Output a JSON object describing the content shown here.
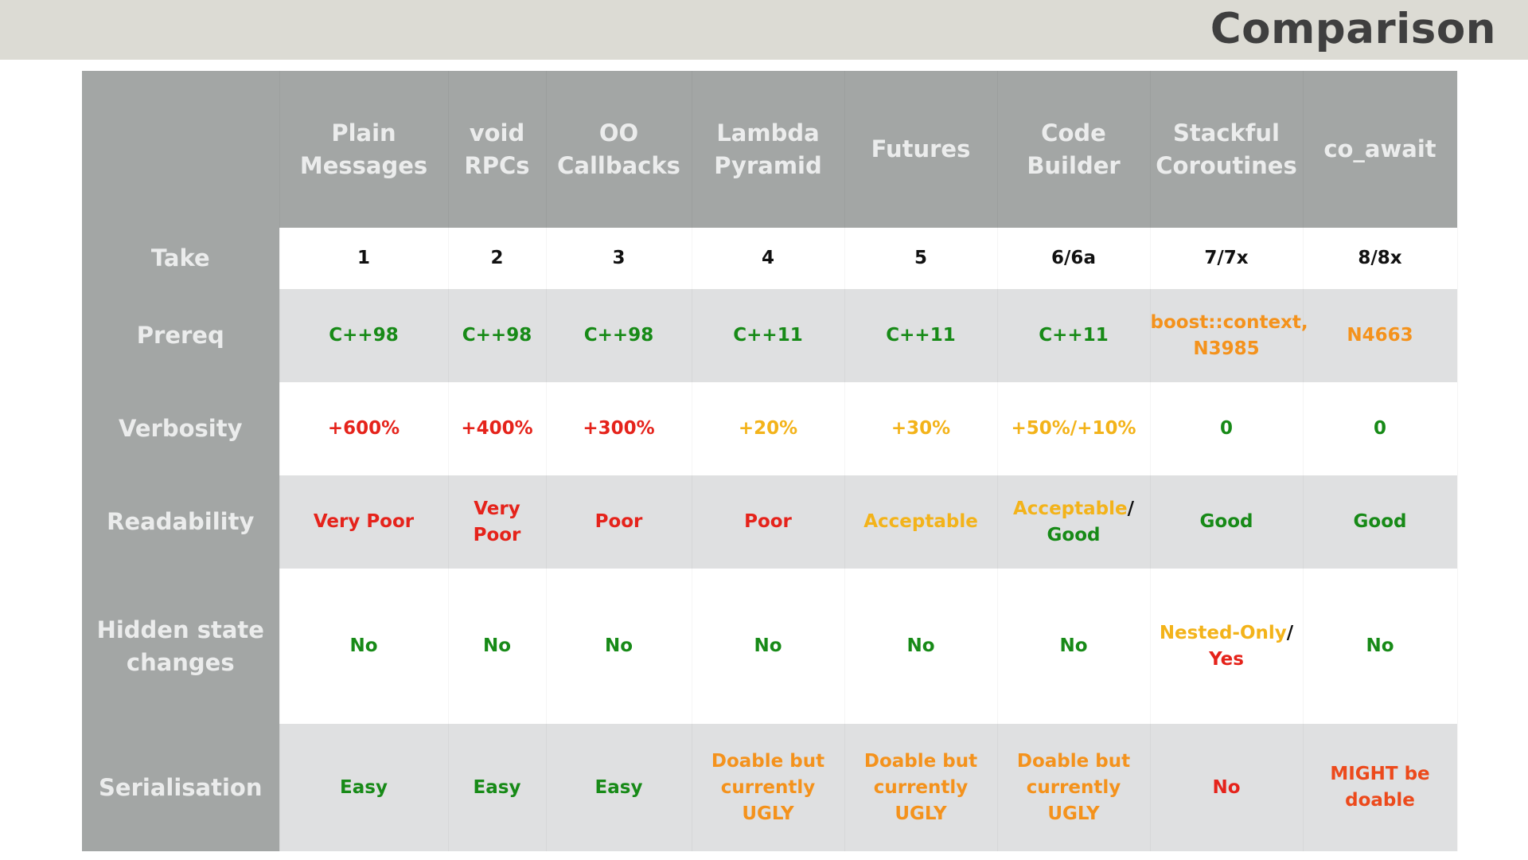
{
  "slide": {
    "title": "Comparison"
  },
  "colors": {
    "black": "#111111",
    "green": "#178a17",
    "red": "#e5231b",
    "yellow": "#f3b31a",
    "orange": "#f4921c",
    "red_orange": "#ec4a1c",
    "header_bg": "#a3a6a5",
    "header_text": "#ebecec",
    "title_bar_bg": "#dcdbd4"
  },
  "table": {
    "columns": [
      {
        "line1": "Plain",
        "line2": "Messages"
      },
      {
        "line1": "void",
        "line2": "RPCs"
      },
      {
        "line1": "OO",
        "line2": "Callbacks"
      },
      {
        "line1": "Lambda",
        "line2": "Pyramid"
      },
      {
        "line1": "Futures",
        "line2": ""
      },
      {
        "line1": "Code",
        "line2": "Builder"
      },
      {
        "line1": "Stackful",
        "line2": "Coroutines"
      },
      {
        "line1": "co_await",
        "line2": ""
      }
    ],
    "rows": [
      {
        "label": [
          "Take"
        ],
        "cells": [
          [
            {
              "text": "1",
              "color": "black"
            }
          ],
          [
            {
              "text": "2",
              "color": "black"
            }
          ],
          [
            {
              "text": "3",
              "color": "black"
            }
          ],
          [
            {
              "text": "4",
              "color": "black"
            }
          ],
          [
            {
              "text": "5",
              "color": "black"
            }
          ],
          [
            {
              "text": "6/6a",
              "color": "black"
            }
          ],
          [
            {
              "text": "7/7x",
              "color": "black"
            }
          ],
          [
            {
              "text": "8/8x",
              "color": "black"
            }
          ]
        ]
      },
      {
        "label": [
          "Prereq"
        ],
        "cells": [
          [
            {
              "text": "C++98",
              "color": "green"
            }
          ],
          [
            {
              "text": "C++98",
              "color": "green"
            }
          ],
          [
            {
              "text": "C++98",
              "color": "green"
            }
          ],
          [
            {
              "text": "C++11",
              "color": "green"
            }
          ],
          [
            {
              "text": "C++11",
              "color": "green"
            }
          ],
          [
            {
              "text": "C++11",
              "color": "green"
            }
          ],
          [
            {
              "text": "boost::context,",
              "color": "orange"
            },
            {
              "text": "N3985",
              "color": "orange",
              "newline": true
            }
          ],
          [
            {
              "text": "N4663",
              "color": "orange"
            }
          ]
        ]
      },
      {
        "label": [
          "Verbosity"
        ],
        "cells": [
          [
            {
              "text": "+600%",
              "color": "red"
            }
          ],
          [
            {
              "text": "+400%",
              "color": "red"
            }
          ],
          [
            {
              "text": "+300%",
              "color": "red"
            }
          ],
          [
            {
              "text": "+20%",
              "color": "yellow"
            }
          ],
          [
            {
              "text": "+30%",
              "color": "yellow"
            }
          ],
          [
            {
              "text": "+50%/+10%",
              "color": "yellow"
            }
          ],
          [
            {
              "text": "0",
              "color": "green"
            }
          ],
          [
            {
              "text": "0",
              "color": "green"
            }
          ]
        ]
      },
      {
        "label": [
          "Readability"
        ],
        "cells": [
          [
            {
              "text": "Very Poor",
              "color": "red"
            }
          ],
          [
            {
              "text": "Very Poor",
              "color": "red"
            }
          ],
          [
            {
              "text": "Poor",
              "color": "red"
            }
          ],
          [
            {
              "text": "Poor",
              "color": "red"
            }
          ],
          [
            {
              "text": "Acceptable",
              "color": "yellow"
            }
          ],
          [
            {
              "text": "Acceptable",
              "color": "yellow"
            },
            {
              "text": "/",
              "color": "black"
            },
            {
              "text": "Good",
              "color": "green",
              "newline": true
            }
          ],
          [
            {
              "text": "Good",
              "color": "green"
            }
          ],
          [
            {
              "text": "Good",
              "color": "green"
            }
          ]
        ]
      },
      {
        "label": [
          "Hidden state",
          "changes"
        ],
        "cells": [
          [
            {
              "text": "No",
              "color": "green"
            }
          ],
          [
            {
              "text": "No",
              "color": "green"
            }
          ],
          [
            {
              "text": "No",
              "color": "green"
            }
          ],
          [
            {
              "text": "No",
              "color": "green"
            }
          ],
          [
            {
              "text": "No",
              "color": "green"
            }
          ],
          [
            {
              "text": "No",
              "color": "green"
            }
          ],
          [
            {
              "text": "Nested-Only",
              "color": "yellow"
            },
            {
              "text": "/",
              "color": "black"
            },
            {
              "text": "Yes",
              "color": "red",
              "newline": true
            }
          ],
          [
            {
              "text": "No",
              "color": "green"
            }
          ]
        ]
      },
      {
        "label": [
          "Serialisation"
        ],
        "cells": [
          [
            {
              "text": "Easy",
              "color": "green"
            }
          ],
          [
            {
              "text": "Easy",
              "color": "green"
            }
          ],
          [
            {
              "text": "Easy",
              "color": "green"
            }
          ],
          [
            {
              "text": "Doable but",
              "color": "orange"
            },
            {
              "text": "currently UGLY",
              "color": "orange",
              "newline": true
            }
          ],
          [
            {
              "text": "Doable but",
              "color": "orange"
            },
            {
              "text": "currently UGLY",
              "color": "orange",
              "newline": true
            }
          ],
          [
            {
              "text": "Doable but",
              "color": "orange"
            },
            {
              "text": "currently UGLY",
              "color": "orange",
              "newline": true
            }
          ],
          [
            {
              "text": "No",
              "color": "red"
            }
          ],
          [
            {
              "text": "MIGHT be",
              "color": "red_orange"
            },
            {
              "text": "doable",
              "color": "red_orange",
              "newline": true
            }
          ]
        ]
      }
    ]
  }
}
